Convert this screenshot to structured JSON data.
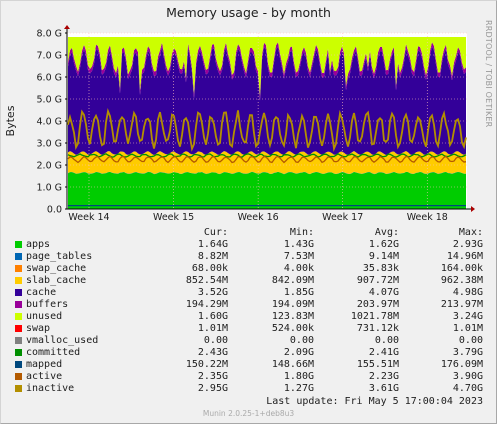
{
  "header": {
    "title": "Memory usage - by month",
    "side_label": "RRDTOOL / TOBI OETIKER"
  },
  "chart_data": {
    "type": "area",
    "title": "Memory usage - by month",
    "ylabel": "Bytes",
    "ylim": [
      0,
      8.0
    ],
    "y_ticks": [
      "0.0",
      "1.0 G",
      "2.0 G",
      "3.0 G",
      "4.0 G",
      "5.0 G",
      "6.0 G",
      "7.0 G",
      "8.0 G"
    ],
    "x_ticks": [
      "Week 14",
      "Week 15",
      "Week 16",
      "Week 17",
      "Week 18"
    ],
    "grid": true,
    "stacked_series": [
      {
        "name": "apps",
        "color": "#00cc00",
        "cur": "1.64G",
        "min": "1.43G",
        "avg": "1.62G",
        "max": "2.93G"
      },
      {
        "name": "page_tables",
        "color": "#0066b3",
        "cur": "8.82M",
        "min": "7.53M",
        "avg": "9.14M",
        "max": "14.96M"
      },
      {
        "name": "swap_cache",
        "color": "#ff8000",
        "cur": "68.00k",
        "min": "4.00k",
        "avg": "35.83k",
        "max": "164.00k"
      },
      {
        "name": "slab_cache",
        "color": "#ffcc00",
        "cur": "852.54M",
        "min": "842.09M",
        "avg": "907.72M",
        "max": "962.38M"
      },
      {
        "name": "cache",
        "color": "#330099",
        "cur": "3.52G",
        "min": "1.85G",
        "avg": "4.07G",
        "max": "4.98G"
      },
      {
        "name": "buffers",
        "color": "#990099",
        "cur": "194.29M",
        "min": "194.09M",
        "avg": "203.97M",
        "max": "213.97M"
      },
      {
        "name": "unused",
        "color": "#ccff00",
        "cur": "1.60G",
        "min": "123.83M",
        "avg": "1021.78M",
        "max": "3.24G"
      },
      {
        "name": "swap",
        "color": "#ff0000",
        "cur": "1.01M",
        "min": "524.00k",
        "avg": "731.12k",
        "max": "1.01M"
      }
    ],
    "line_series": [
      {
        "name": "vmalloc_used",
        "color": "#808080",
        "cur": "0.00",
        "min": "0.00",
        "avg": "0.00",
        "max": "0.00"
      },
      {
        "name": "committed",
        "color": "#008f00",
        "cur": "2.43G",
        "min": "2.09G",
        "avg": "2.41G",
        "max": "3.79G"
      },
      {
        "name": "mapped",
        "color": "#00487d",
        "cur": "150.22M",
        "min": "148.66M",
        "avg": "155.51M",
        "max": "176.09M"
      },
      {
        "name": "active",
        "color": "#b35a00",
        "cur": "2.35G",
        "min": "1.80G",
        "avg": "2.23G",
        "max": "3.90G"
      },
      {
        "name": "inactive",
        "color": "#b38f00",
        "cur": "2.95G",
        "min": "1.27G",
        "avg": "3.61G",
        "max": "4.70G"
      }
    ]
  },
  "legend": {
    "headers": {
      "cur": "Cur:",
      "min": "Min:",
      "avg": "Avg:",
      "max": "Max:"
    }
  },
  "footer": {
    "last_update": "Last update:  Fri May  5 17:00:04 2023",
    "version": "Munin 2.0.25-1+deb8u3"
  }
}
